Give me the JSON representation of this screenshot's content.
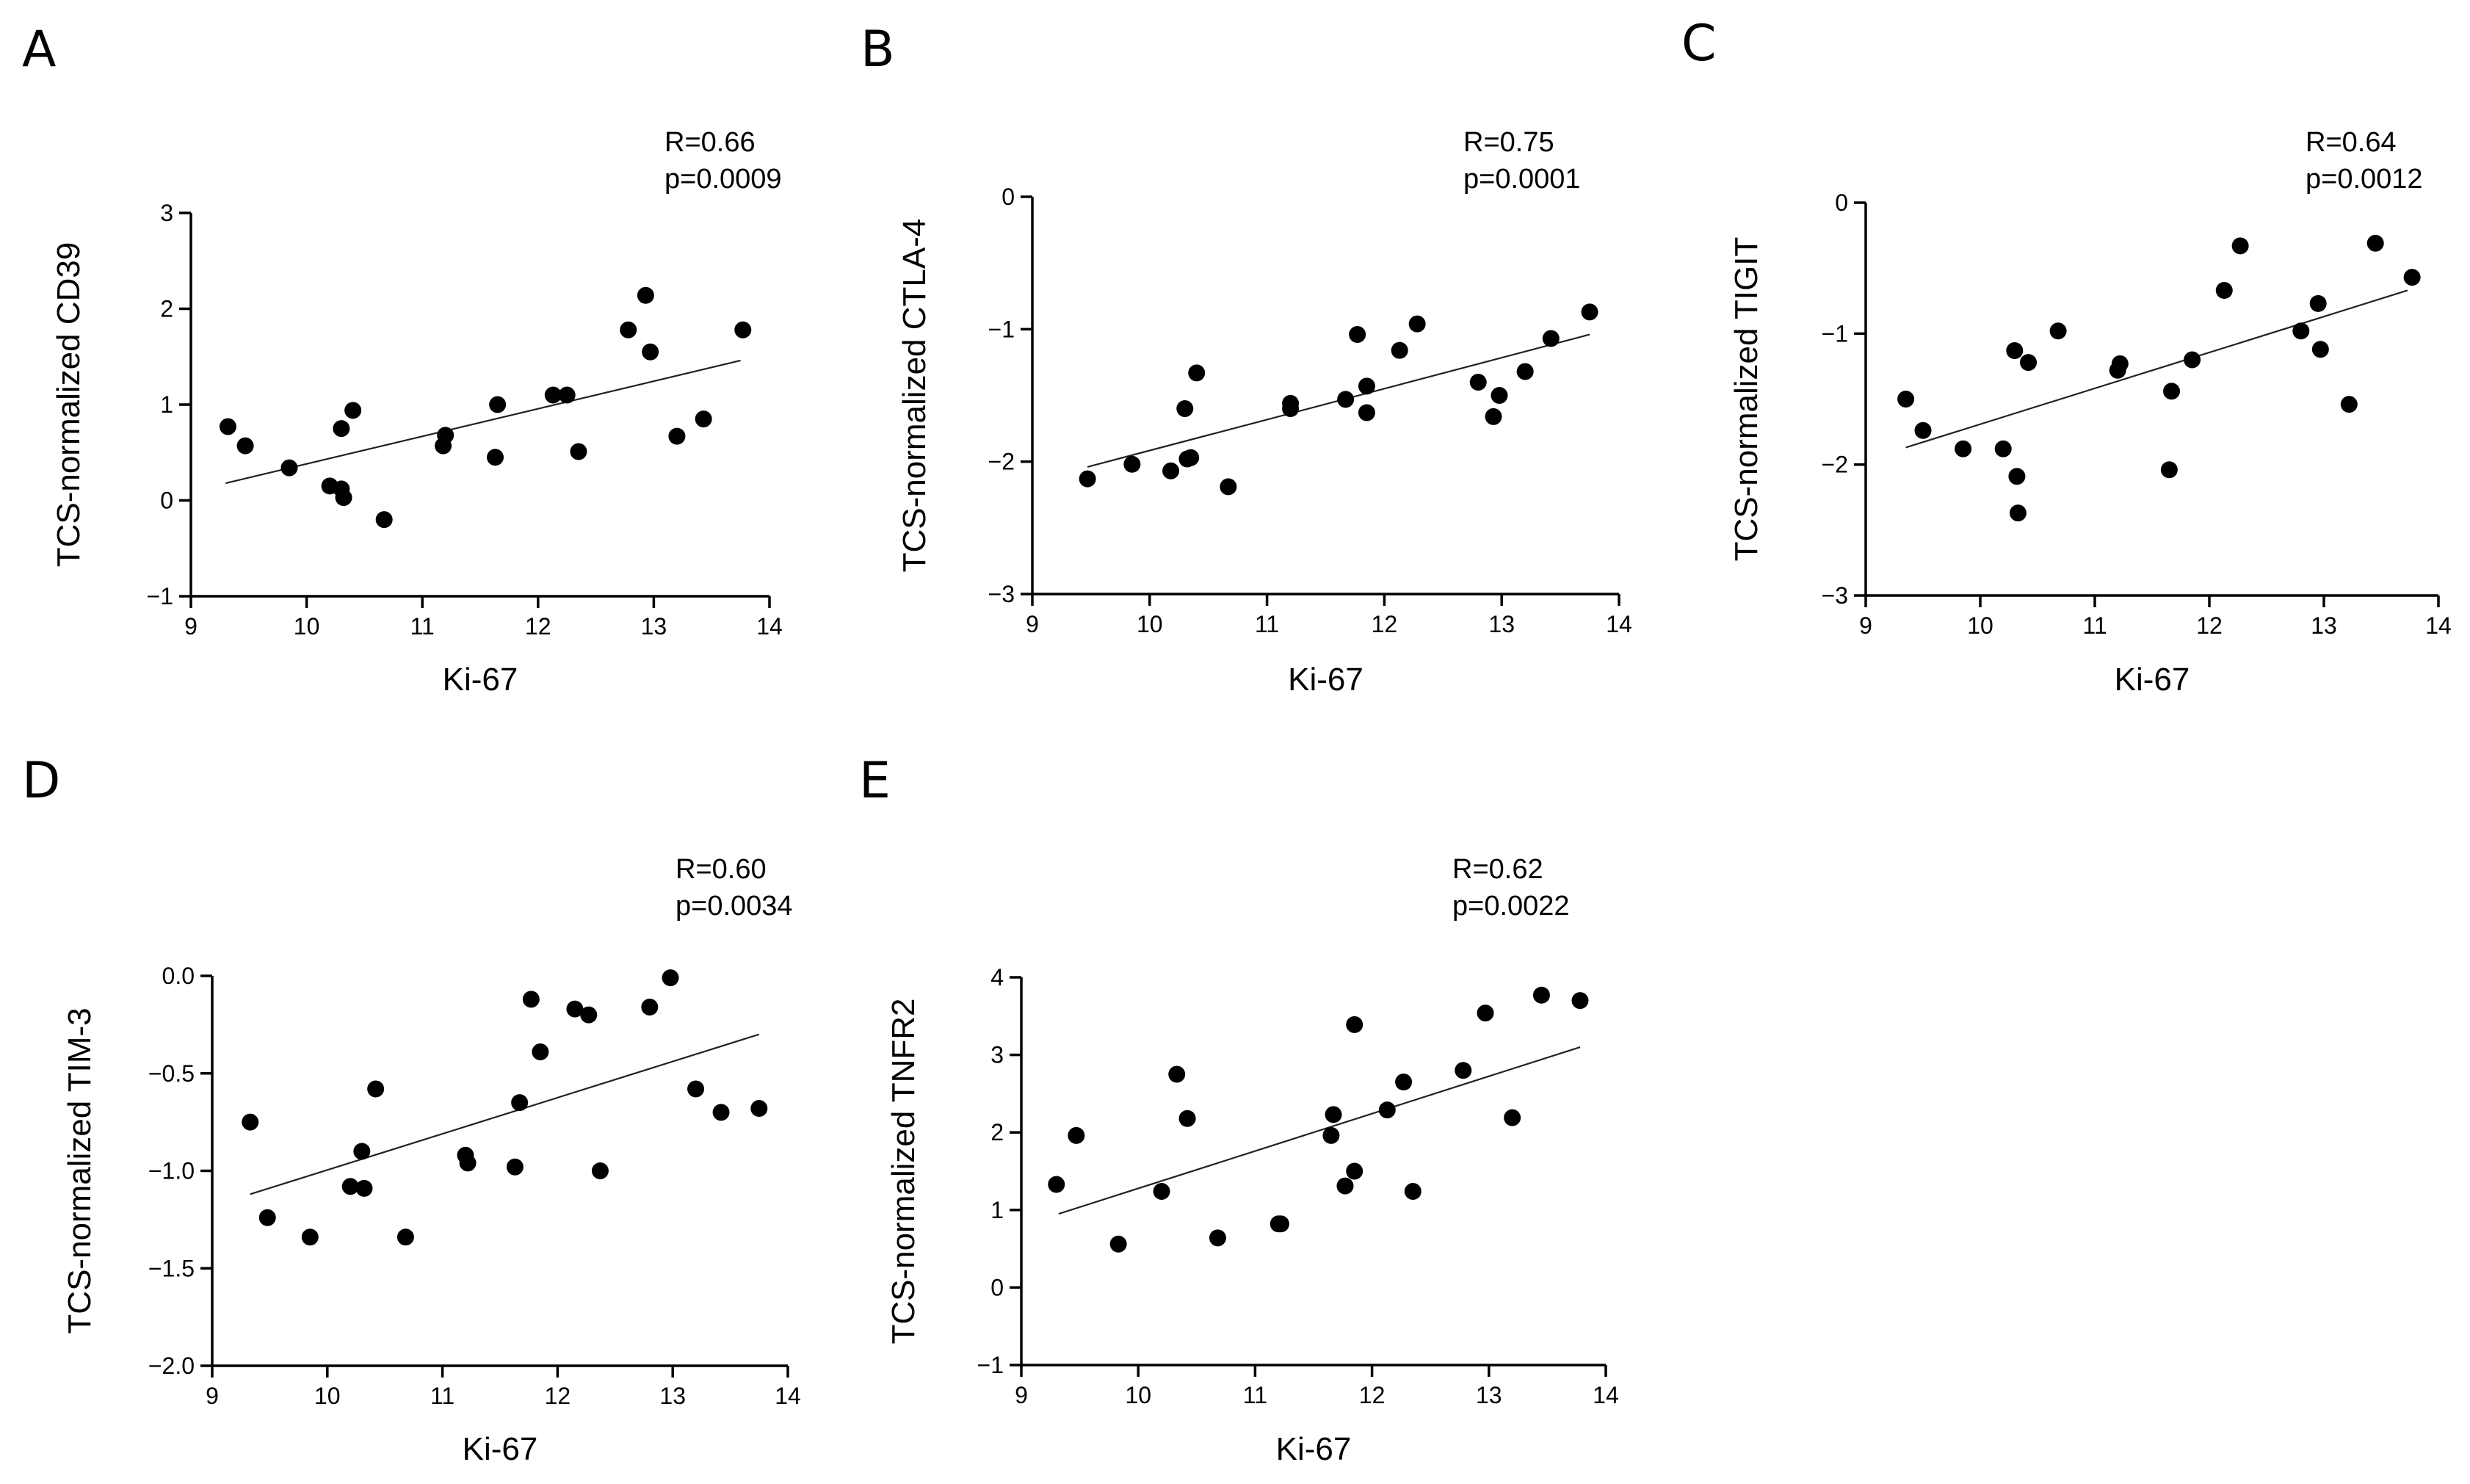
{
  "colors": {
    "points": "#000000",
    "axes": "#000000",
    "fit_line": "#222222",
    "background": "#ffffff"
  },
  "chart_data": [
    {
      "panel": "A",
      "type": "scatter",
      "xlabel": "Ki-67",
      "ylabel": "TCS-normalized CD39",
      "xlim": [
        9,
        14
      ],
      "ylim": [
        -1,
        3
      ],
      "xticks": [
        9,
        10,
        11,
        12,
        13,
        14
      ],
      "yticks": [
        -1,
        0,
        1,
        2,
        3
      ],
      "ytick_labels": [
        "−1",
        "0",
        "1",
        "2",
        "3"
      ],
      "r_label": "R=0.66",
      "p_label": "p=0.0009",
      "fit": {
        "x": [
          9.3,
          13.75
        ],
        "y": [
          0.18,
          1.46
        ]
      },
      "x": [
        9.32,
        9.47,
        9.85,
        10.2,
        10.3,
        10.3,
        10.32,
        10.4,
        10.67,
        11.18,
        11.2,
        11.63,
        11.65,
        12.13,
        12.25,
        12.35,
        12.78,
        12.93,
        12.97,
        13.2,
        13.43,
        13.77
      ],
      "y": [
        0.77,
        0.57,
        0.34,
        0.15,
        0.75,
        0.12,
        0.03,
        0.94,
        -0.2,
        0.57,
        0.68,
        0.45,
        1.0,
        1.1,
        1.1,
        0.51,
        1.78,
        2.14,
        1.55,
        0.67,
        0.85,
        1.78
      ]
    },
    {
      "panel": "B",
      "type": "scatter",
      "xlabel": "Ki-67",
      "ylabel": "TCS-normalized CTLA-4",
      "xlim": [
        9,
        14
      ],
      "ylim": [
        -3,
        0
      ],
      "xticks": [
        9,
        10,
        11,
        12,
        13,
        14
      ],
      "yticks": [
        -3,
        -2,
        -1,
        0
      ],
      "ytick_labels": [
        "−3",
        "−2",
        "−1",
        "0"
      ],
      "r_label": "R=0.75",
      "p_label": "p=0.0001",
      "fit": {
        "x": [
          9.47,
          13.75
        ],
        "y": [
          -2.04,
          -1.04
        ]
      },
      "x": [
        9.47,
        9.85,
        10.18,
        10.3,
        10.32,
        10.35,
        10.4,
        10.67,
        11.2,
        11.2,
        11.67,
        11.77,
        11.85,
        11.85,
        12.13,
        12.28,
        12.8,
        12.93,
        12.98,
        13.2,
        13.42,
        13.75
      ],
      "y": [
        -2.13,
        -2.02,
        -2.07,
        -1.6,
        -1.98,
        -1.97,
        -1.33,
        -2.19,
        -1.6,
        -1.56,
        -1.53,
        -1.04,
        -1.43,
        -1.63,
        -1.16,
        -0.96,
        -1.4,
        -1.66,
        -1.5,
        -1.32,
        -1.07,
        -0.87
      ]
    },
    {
      "panel": "C",
      "type": "scatter",
      "xlabel": "Ki-67",
      "ylabel": "TCS-normalized TIGIT",
      "xlim": [
        9,
        14
      ],
      "ylim": [
        -3,
        0
      ],
      "xticks": [
        9,
        10,
        11,
        12,
        13,
        14
      ],
      "yticks": [
        -3,
        -2,
        -1,
        0
      ],
      "ytick_labels": [
        "−3",
        "−2",
        "−1",
        "0"
      ],
      "r_label": "R=0.64",
      "p_label": "p=0.0012",
      "fit": {
        "x": [
          9.35,
          13.73
        ],
        "y": [
          -1.87,
          -0.67
        ]
      },
      "x": [
        9.35,
        9.5,
        9.85,
        10.2,
        10.3,
        10.32,
        10.33,
        10.42,
        10.68,
        11.2,
        11.22,
        11.65,
        11.67,
        11.85,
        12.13,
        12.27,
        12.8,
        12.95,
        12.97,
        13.22,
        13.45,
        13.77
      ],
      "y": [
        -1.5,
        -1.74,
        -1.88,
        -1.88,
        -1.13,
        -2.09,
        -2.37,
        -1.22,
        -0.98,
        -1.28,
        -1.23,
        -2.04,
        -1.44,
        -1.2,
        -0.67,
        -0.33,
        -0.98,
        -0.77,
        -1.12,
        -1.54,
        -0.31,
        -0.57
      ]
    },
    {
      "panel": "D",
      "type": "scatter",
      "xlabel": "Ki-67",
      "ylabel": "TCS-normalized TIM-3",
      "xlim": [
        9,
        14
      ],
      "ylim": [
        -2,
        0
      ],
      "xticks": [
        9,
        10,
        11,
        12,
        13,
        14
      ],
      "yticks": [
        -2.0,
        -1.5,
        -1.0,
        -0.5,
        0.0
      ],
      "ytick_labels": [
        "−2.0",
        "−1.5",
        "−1.0",
        "−0.5",
        "0.0"
      ],
      "r_label": "R=0.60",
      "p_label": "p=0.0034",
      "fit": {
        "x": [
          9.33,
          13.75
        ],
        "y": [
          -1.12,
          -0.3
        ]
      },
      "x": [
        9.33,
        9.48,
        9.85,
        10.2,
        10.3,
        10.32,
        10.42,
        10.68,
        11.2,
        11.22,
        11.63,
        11.67,
        11.77,
        11.85,
        12.15,
        12.27,
        12.37,
        12.8,
        12.98,
        13.2,
        13.42,
        13.75
      ],
      "y": [
        -0.75,
        -1.24,
        -1.34,
        -1.08,
        -0.9,
        -1.09,
        -0.58,
        -1.34,
        -0.92,
        -0.96,
        -0.98,
        -0.65,
        -0.12,
        -0.39,
        -0.17,
        -0.2,
        -1.0,
        -0.16,
        -0.01,
        -0.58,
        -0.7,
        -0.68
      ]
    },
    {
      "panel": "E",
      "type": "scatter",
      "xlabel": "Ki-67",
      "ylabel": "TCS-normalized TNFR2",
      "xlim": [
        9,
        14
      ],
      "ylim": [
        -1,
        4
      ],
      "xticks": [
        9,
        10,
        11,
        12,
        13,
        14
      ],
      "yticks": [
        -1,
        0,
        1,
        2,
        3,
        4
      ],
      "ytick_labels": [
        "−1",
        "0",
        "1",
        "2",
        "3",
        "4"
      ],
      "r_label": "R=0.62",
      "p_label": "p=0.0022",
      "fit": {
        "x": [
          9.32,
          13.78
        ],
        "y": [
          0.95,
          3.1
        ]
      },
      "x": [
        9.3,
        9.47,
        9.83,
        10.2,
        10.33,
        10.42,
        10.68,
        11.2,
        11.22,
        11.65,
        11.67,
        11.77,
        11.85,
        11.85,
        12.13,
        12.27,
        12.35,
        12.78,
        12.97,
        13.2,
        13.45,
        13.78
      ],
      "y": [
        1.33,
        1.96,
        0.56,
        1.24,
        2.75,
        2.18,
        0.64,
        0.82,
        0.82,
        1.96,
        2.23,
        1.31,
        1.5,
        3.39,
        2.29,
        2.65,
        1.24,
        2.8,
        3.54,
        2.19,
        3.77,
        3.7
      ]
    }
  ]
}
